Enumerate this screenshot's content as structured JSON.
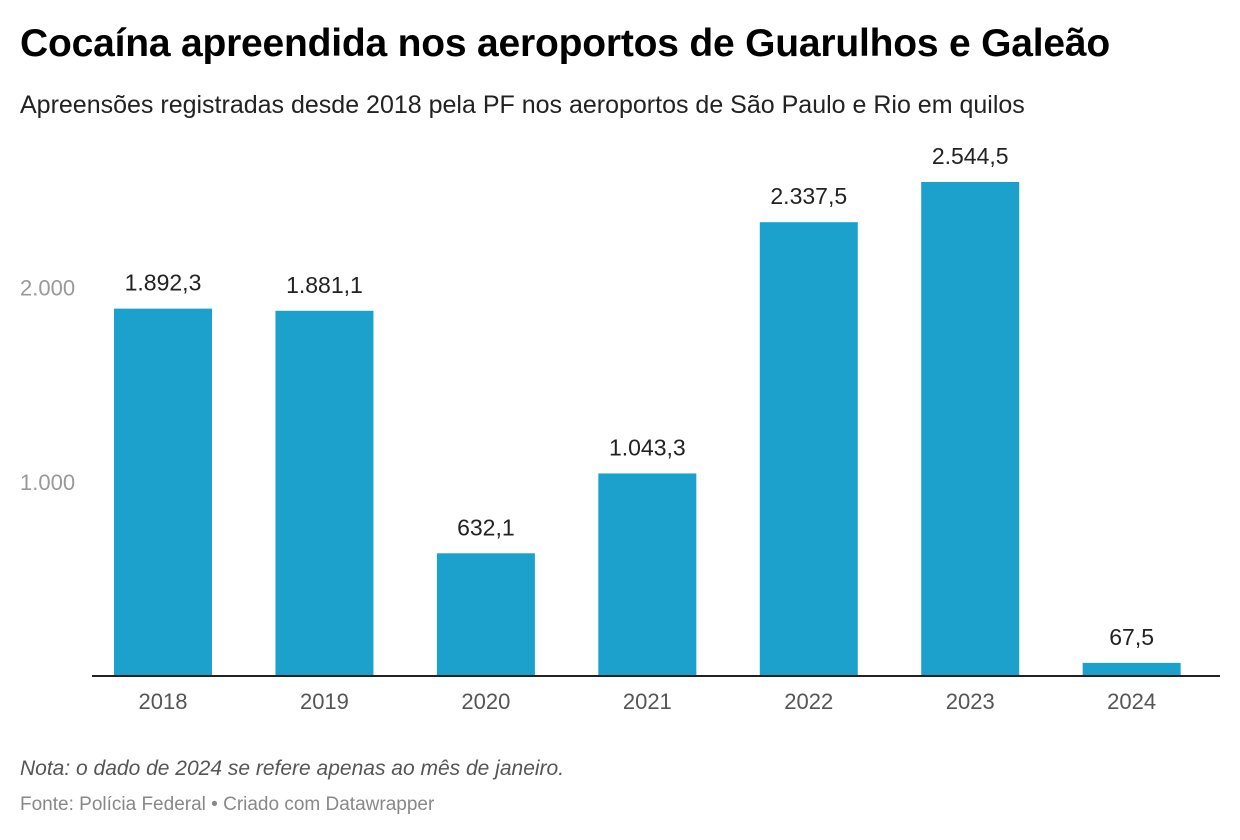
{
  "header": {
    "title": "Cocaína apreendida nos aeroportos de Guarulhos e Galeão",
    "subtitle": "Apreensões registradas desde 2018 pela PF nos aeroportos de São Paulo e Rio em quilos"
  },
  "footer": {
    "note": "Nota: o dado de 2024 se refere apenas ao mês de janeiro.",
    "source_prefix": "Fonte: Polícia Federal",
    "separator": "•",
    "credit": "Criado com Datawrapper"
  },
  "colors": {
    "bar": "#1ba1cc",
    "axis": "#222222"
  },
  "chart_data": {
    "type": "bar",
    "title": "Cocaína apreendida nos aeroportos de Guarulhos e Galeão",
    "xlabel": "",
    "ylabel": "quilos",
    "categories": [
      "2018",
      "2019",
      "2020",
      "2021",
      "2022",
      "2023",
      "2024"
    ],
    "values": [
      1892.3,
      1881.1,
      632.1,
      1043.3,
      2337.5,
      2544.5,
      67.5
    ],
    "value_labels": [
      "1.892,3",
      "1.881,1",
      "632,1",
      "1.043,3",
      "2.337,5",
      "2.544,5",
      "67,5"
    ],
    "yticks": [
      1000,
      2000
    ],
    "ytick_labels": [
      "1.000",
      "2.000"
    ],
    "ylim": [
      0,
      2544.5
    ],
    "grid": false,
    "legend": "none"
  }
}
